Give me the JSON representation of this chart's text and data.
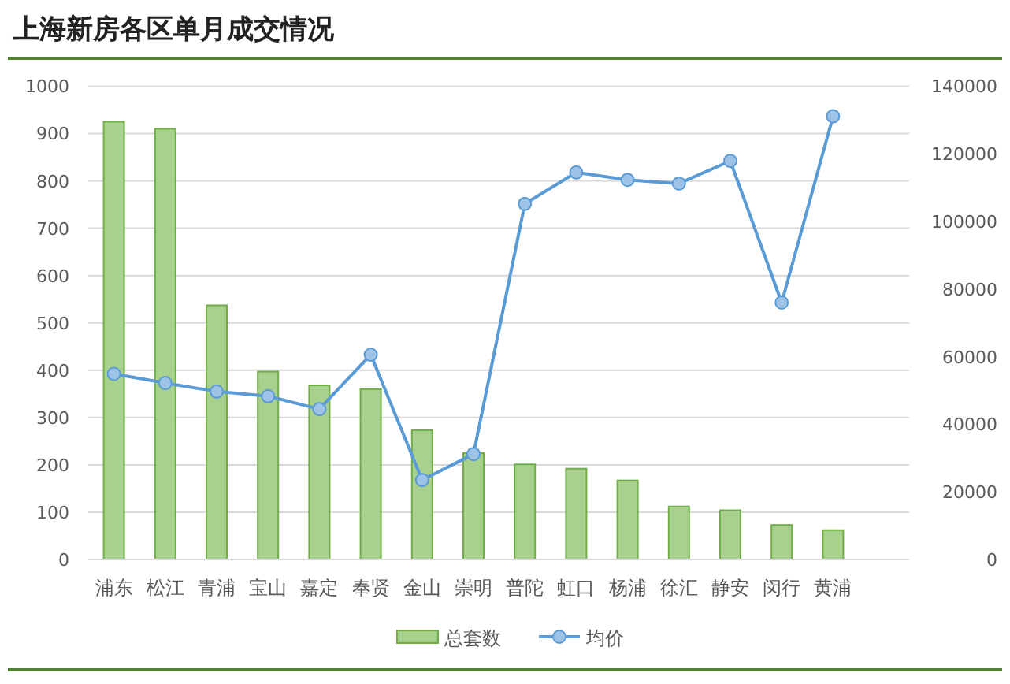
{
  "chart_data": {
    "type": "bar",
    "title": "上海新房各区单月成交情况",
    "categories": [
      "浦东",
      "松江",
      "青浦",
      "宝山",
      "嘉定",
      "奉贤",
      "金山",
      "崇明",
      "普陀",
      "虹口",
      "杨浦",
      "徐汇",
      "静安",
      "闵行",
      "黄浦"
    ],
    "series": [
      {
        "name": "总套数",
        "color": "#a9d18e",
        "values": [
          925,
          910,
          537,
          397,
          368,
          360,
          273,
          225,
          201,
          192,
          167,
          112,
          104,
          73,
          62
        ]
      },
      {
        "name": "均价",
        "type": "line",
        "axis": "y2",
        "color": "#5b9bd5",
        "values": [
          54900,
          52200,
          49700,
          48300,
          44500,
          60600,
          23500,
          31200,
          105200,
          114500,
          112300,
          111200,
          117900,
          76000,
          131100
        ]
      }
    ],
    "ylim": [
      0,
      1000
    ],
    "yticks": [
      0,
      100,
      200,
      300,
      400,
      500,
      600,
      700,
      800,
      900,
      1000
    ],
    "y2lim": [
      0,
      140000
    ],
    "y2ticks": [
      0,
      20000,
      40000,
      60000,
      80000,
      100000,
      120000,
      140000
    ],
    "grid": "y",
    "legend": "bottom",
    "marker": "circle"
  }
}
